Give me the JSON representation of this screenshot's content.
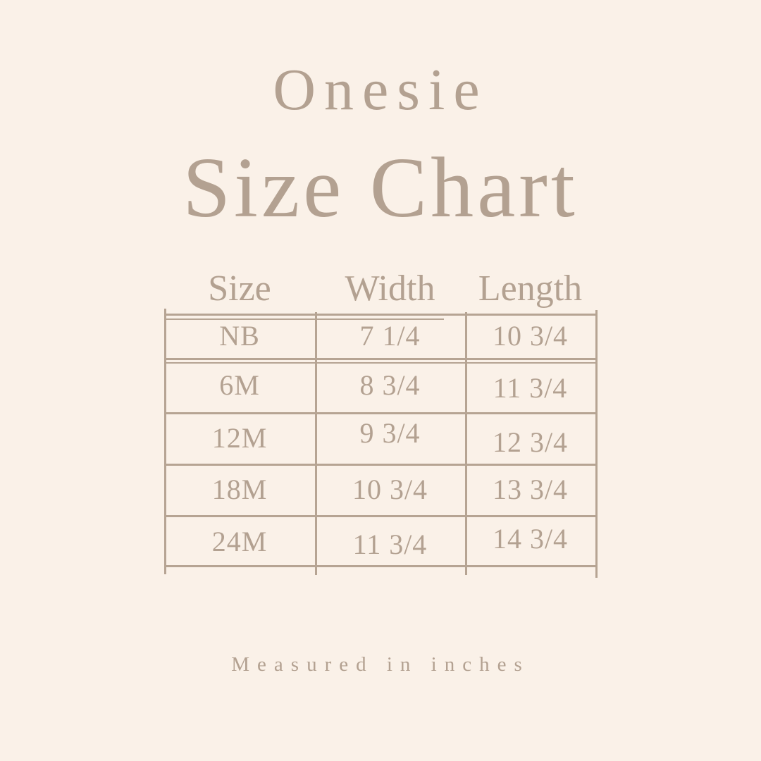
{
  "colors": {
    "background": "#faf1e8",
    "text": "#b3a191",
    "line": "#b6a493"
  },
  "header": {
    "eyebrow": "Onesie",
    "title": "Size Chart"
  },
  "footer": {
    "note": "Measured in inches"
  },
  "chart_data": {
    "type": "table",
    "title": "Onesie Size Chart",
    "units": "inches",
    "columns": [
      "Size",
      "Width",
      "Length"
    ],
    "rows": [
      [
        "NB",
        "7 1/4",
        "10 3/4"
      ],
      [
        "6M",
        "8 3/4",
        "11 3/4"
      ],
      [
        "12M",
        "9 3/4",
        "12 3/4"
      ],
      [
        "18M",
        "10 3/4",
        "13 3/4"
      ],
      [
        "24M",
        "11 3/4",
        "14 3/4"
      ]
    ]
  }
}
